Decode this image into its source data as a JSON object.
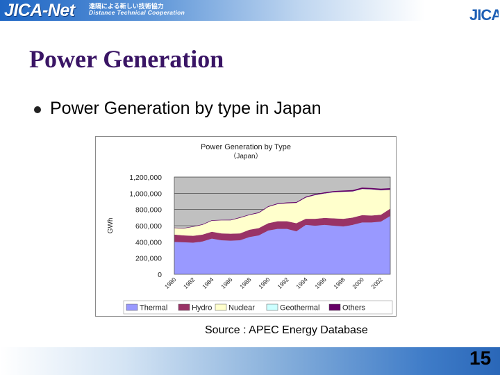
{
  "header": {
    "brand": "JICA-Net",
    "subtitle_jp": "遠隔による新しい技術協力",
    "subtitle_en": "Distance Technical Cooperation",
    "logo_text": "JICA"
  },
  "slide": {
    "title": "Power Generation",
    "bullet": "Power Generation by type in Japan",
    "source": "Source : APEC Energy Database",
    "page_number": "15"
  },
  "chart_data": {
    "type": "area",
    "stacked": true,
    "title": "Power Generation by Type",
    "subtitle": "（Japan）",
    "ylabel": "GWh",
    "xlabel": "",
    "ylim": [
      0,
      1200000
    ],
    "yticks": [
      0,
      200000,
      400000,
      600000,
      800000,
      1000000,
      1200000
    ],
    "ytick_labels": [
      "0",
      "200,000",
      "400,000",
      "600,000",
      "800,000",
      "1,000,000",
      "1,200,000"
    ],
    "xtick_labels": [
      "1980",
      "1982",
      "1984",
      "1986",
      "1988",
      "1990",
      "1992",
      "1994",
      "1996",
      "1998",
      "2000",
      "2002"
    ],
    "x": [
      1980,
      1981,
      1982,
      1983,
      1984,
      1985,
      1986,
      1987,
      1988,
      1989,
      1990,
      1991,
      1992,
      1993,
      1994,
      1995,
      1996,
      1997,
      1998,
      1999,
      2000,
      2001,
      2002,
      2003
    ],
    "legend_position": "bottom",
    "grid": true,
    "series": [
      {
        "name": "Thermal",
        "color": "#9999ff",
        "values": [
          400000,
          395000,
          390000,
          405000,
          440000,
          420000,
          415000,
          420000,
          460000,
          480000,
          540000,
          560000,
          560000,
          530000,
          610000,
          600000,
          610000,
          600000,
          590000,
          610000,
          640000,
          640000,
          650000,
          720000
        ]
      },
      {
        "name": "Hydro",
        "color": "#993366",
        "values": [
          90000,
          85000,
          85000,
          85000,
          85000,
          85000,
          85000,
          85000,
          90000,
          90000,
          90000,
          95000,
          95000,
          100000,
          75000,
          85000,
          85000,
          90000,
          95000,
          90000,
          90000,
          85000,
          85000,
          90000
        ]
      },
      {
        "name": "Nuclear",
        "color": "#ffffcc",
        "values": [
          80000,
          85000,
          110000,
          120000,
          135000,
          160000,
          165000,
          190000,
          180000,
          185000,
          200000,
          210000,
          220000,
          250000,
          260000,
          290000,
          300000,
          320000,
          330000,
          320000,
          320000,
          320000,
          300000,
          230000
        ]
      },
      {
        "name": "Geothermal",
        "color": "#ccffff",
        "values": [
          1000,
          1000,
          1000,
          1000,
          1000,
          1000,
          1500,
          1500,
          1500,
          1500,
          1700,
          1700,
          1700,
          1700,
          2000,
          3000,
          3500,
          3500,
          3500,
          3500,
          3500,
          3500,
          3500,
          3500
        ]
      },
      {
        "name": "Others",
        "color": "#660066",
        "values": [
          5000,
          5000,
          5000,
          6000,
          6000,
          6000,
          6000,
          7000,
          7000,
          8000,
          8000,
          9000,
          10000,
          10000,
          11000,
          12000,
          13000,
          14000,
          15000,
          16000,
          17000,
          17000,
          18000,
          19000
        ]
      }
    ]
  }
}
